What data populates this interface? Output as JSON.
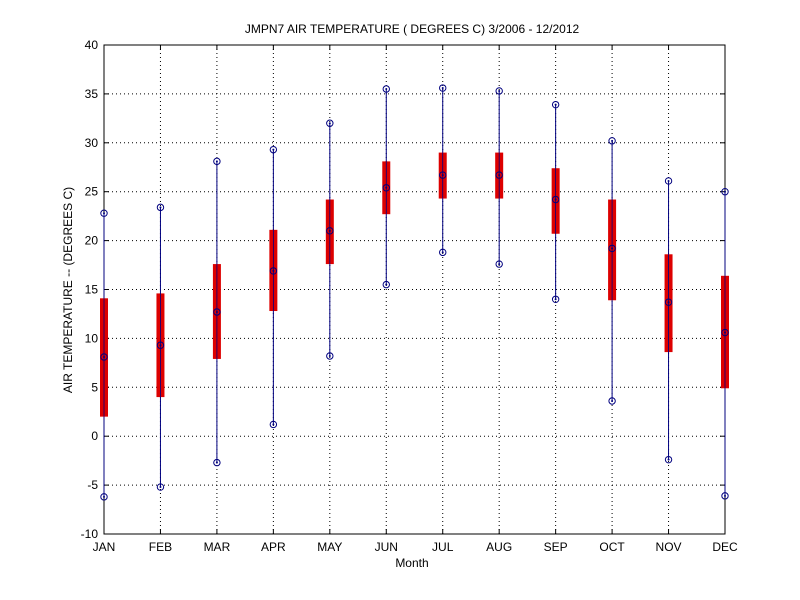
{
  "chart_data": {
    "type": "boxplot",
    "title": "JMPN7  AIR TEMPERATURE ( DEGREES C) 3/2006 - 12/2012",
    "xlabel": "Month",
    "ylabel": "AIR TEMPERATURE -- (DEGREES C)",
    "ylim": [
      -10,
      40
    ],
    "yticks": [
      -10,
      -5,
      0,
      5,
      10,
      15,
      20,
      25,
      30,
      35,
      40
    ],
    "grid": true,
    "categories": [
      "JAN",
      "FEB",
      "MAR",
      "APR",
      "MAY",
      "JUN",
      "JUL",
      "AUG",
      "SEP",
      "OCT",
      "NOV",
      "DEC"
    ],
    "series": [
      {
        "name": "min",
        "values": [
          -6.2,
          -5.2,
          -2.7,
          1.2,
          8.2,
          15.5,
          18.8,
          17.6,
          14.0,
          3.6,
          -2.4,
          -6.1
        ]
      },
      {
        "name": "lower",
        "values": [
          2.0,
          4.0,
          7.9,
          12.8,
          17.6,
          22.7,
          24.3,
          24.3,
          20.7,
          13.9,
          8.6,
          4.9
        ]
      },
      {
        "name": "median",
        "values": [
          8.1,
          9.3,
          12.7,
          16.9,
          21.0,
          25.4,
          26.7,
          26.7,
          24.2,
          19.2,
          13.7,
          10.6
        ]
      },
      {
        "name": "upper",
        "values": [
          14.1,
          14.6,
          17.6,
          21.1,
          24.2,
          28.1,
          29.0,
          29.0,
          27.4,
          24.2,
          18.6,
          16.4
        ]
      },
      {
        "name": "max",
        "values": [
          22.8,
          23.4,
          28.1,
          29.3,
          32.0,
          35.5,
          35.6,
          35.3,
          33.9,
          30.2,
          26.1,
          25.0
        ]
      }
    ],
    "colors": {
      "whisker": "#00007f",
      "box": "#dd0000",
      "marker": "#00007f",
      "grid": "#000000"
    }
  }
}
